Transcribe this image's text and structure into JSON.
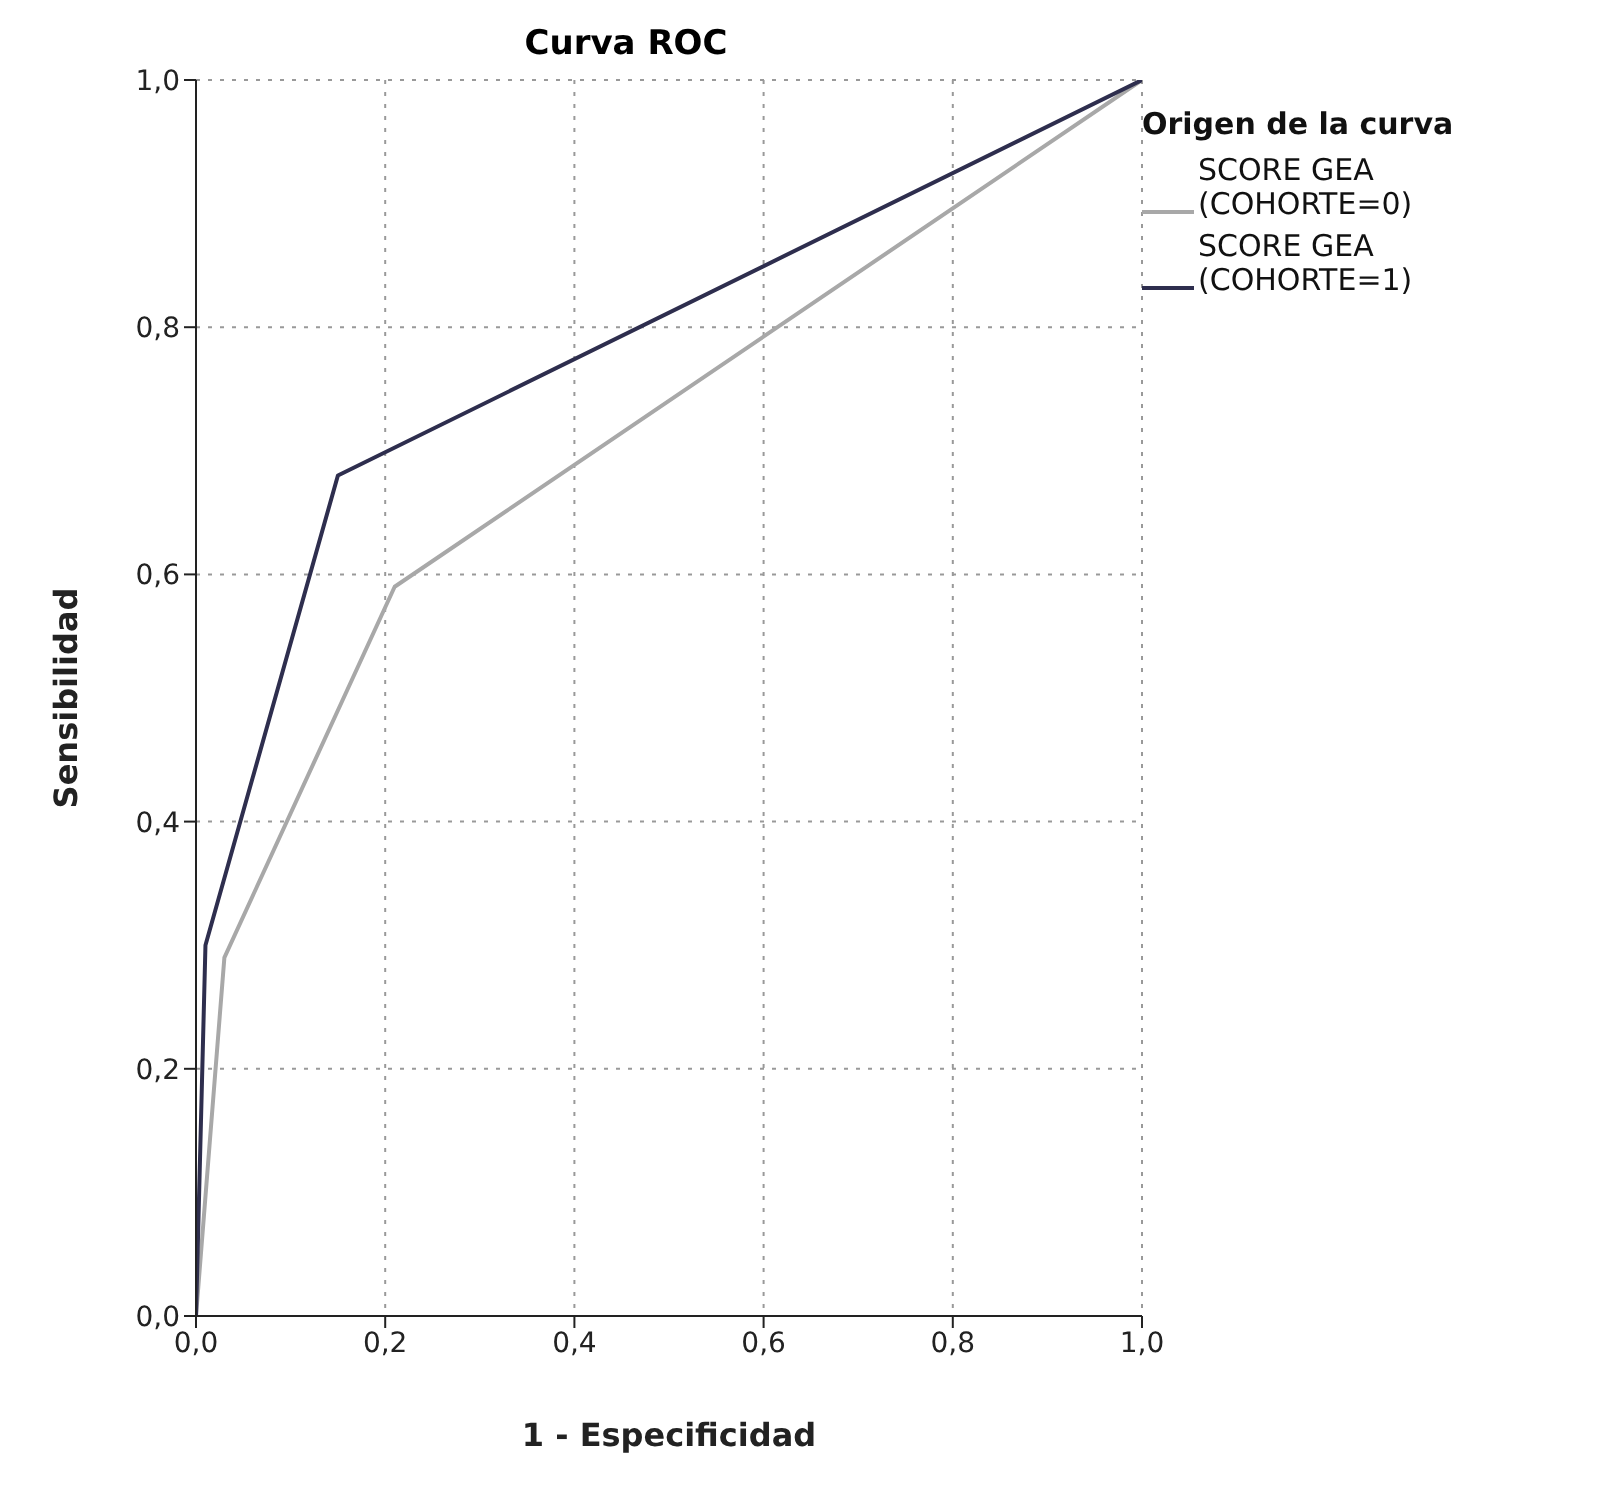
{
  "chart_data": {
    "type": "line",
    "title": "Curva ROC",
    "xlabel": "1 - Especificidad",
    "ylabel": "Sensibilidad",
    "legend_title": "Origen de la curva",
    "xlim": [
      0,
      1
    ],
    "ylim": [
      0,
      1
    ],
    "xticks": [
      {
        "value": 0,
        "label": "0,0"
      },
      {
        "value": 0.2,
        "label": "0,2"
      },
      {
        "value": 0.4,
        "label": "0,4"
      },
      {
        "value": 0.6,
        "label": "0,6"
      },
      {
        "value": 0.8,
        "label": "0,8"
      },
      {
        "value": 1,
        "label": "1,0"
      }
    ],
    "yticks": [
      {
        "value": 0,
        "label": "0,0"
      },
      {
        "value": 0.2,
        "label": "0,2"
      },
      {
        "value": 0.4,
        "label": "0,4"
      },
      {
        "value": 0.6,
        "label": "0,6"
      },
      {
        "value": 0.8,
        "label": "0,8"
      },
      {
        "value": 1,
        "label": "1,0"
      }
    ],
    "grid": true,
    "legend": "top right",
    "marker": "none",
    "line_style": "solid",
    "series": [
      {
        "name": "SCORE GEA (COHORTE=0)",
        "color": "#a8a8a8",
        "x": [
          0,
          0.03,
          0.21,
          1
        ],
        "values": [
          0,
          0.29,
          0.59,
          1
        ]
      },
      {
        "name": "SCORE GEA (COHORTE=1)",
        "color": "#2e2e4e",
        "x": [
          0,
          0.01,
          0.15,
          1
        ],
        "values": [
          0,
          0.3,
          0.68,
          1
        ]
      }
    ]
  }
}
